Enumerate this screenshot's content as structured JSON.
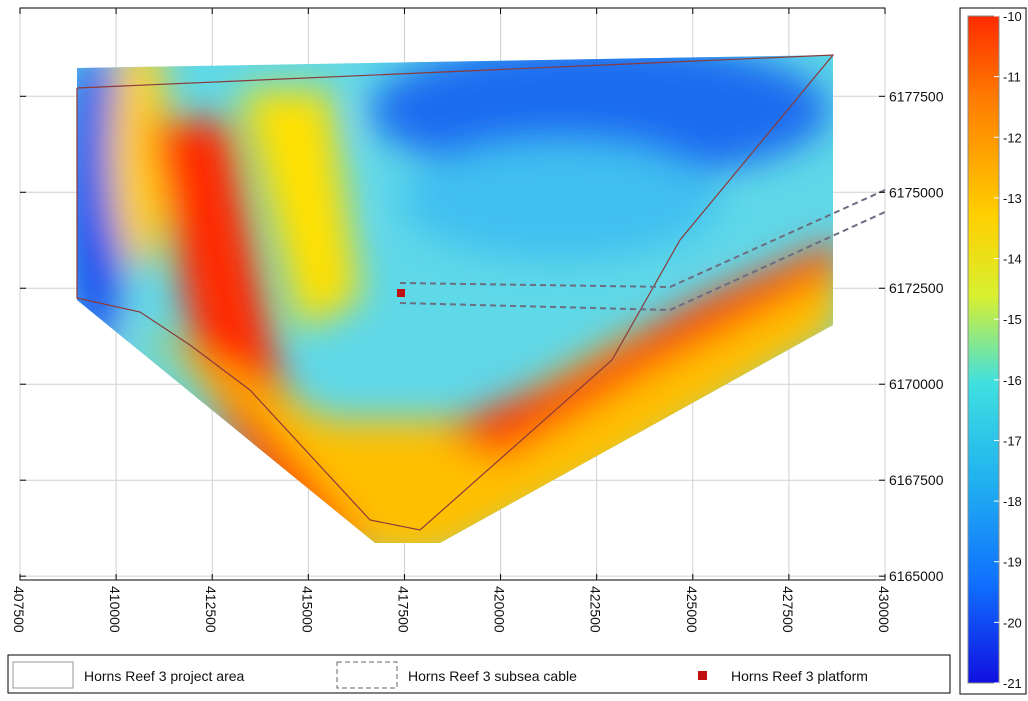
{
  "map": {
    "xlim": [
      407500,
      430000
    ],
    "ylim": [
      6164900,
      6179800
    ],
    "xticks": [
      407500,
      410000,
      412500,
      415000,
      417500,
      420000,
      422500,
      425000,
      427500,
      430000
    ],
    "yticks": [
      6165000,
      6167500,
      6170000,
      6172500,
      6175000,
      6177500
    ],
    "colorbar": {
      "lim": [
        -21,
        -10
      ],
      "ticks": [
        -10,
        -11,
        -12,
        -13,
        -14,
        -15,
        -16,
        -17,
        -18,
        -19,
        -20,
        -21
      ]
    },
    "legend": [
      "Horns Reef 3 project area",
      "Horns Reef 3 subsea cable",
      "Horns Reef 3 platform"
    ]
  }
}
